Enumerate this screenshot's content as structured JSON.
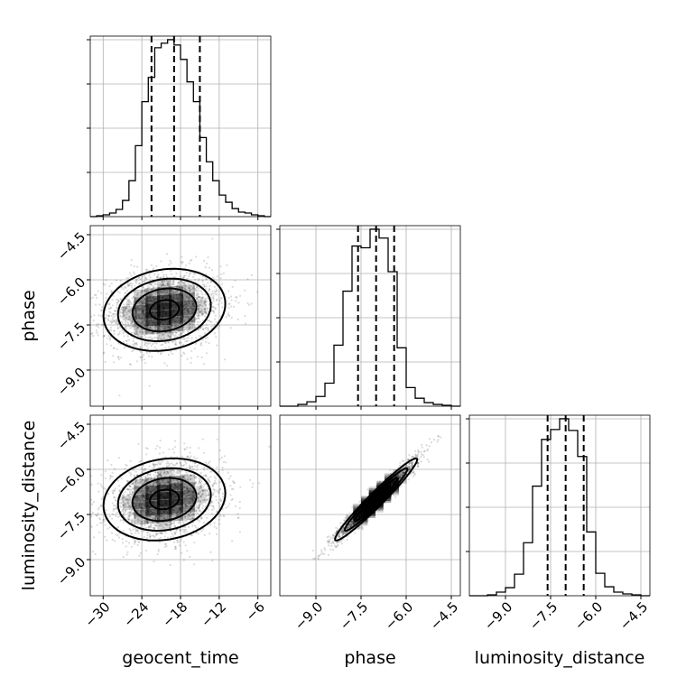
{
  "chart_data": {
    "type": "corner",
    "parameters": [
      {
        "name": "geocent_time",
        "range": [
          -32,
          -4
        ],
        "ticks": [
          -30,
          -24,
          -18,
          -12,
          -6
        ],
        "tick_labels": [
          "−30",
          "−24",
          "−18",
          "−12",
          "−6"
        ],
        "quantiles": [
          -22.5,
          -19,
          -15
        ]
      },
      {
        "name": "phase",
        "range": [
          -10.2,
          -4.2
        ],
        "ticks": [
          -9.0,
          -7.5,
          -6.0,
          -4.5
        ],
        "tick_labels": [
          "−9.0",
          "−7.5",
          "−6.0",
          "−4.5"
        ],
        "quantiles": [
          -7.6,
          -7.0,
          -6.4
        ]
      },
      {
        "name": "luminosity_distance",
        "range": [
          -10.2,
          -4.2
        ],
        "ticks": [
          -9.0,
          -7.5,
          -6.0,
          -4.5
        ],
        "tick_labels": [
          "−9.0",
          "−7.5",
          "−6.0",
          "−4.5"
        ],
        "quantiles": [
          -7.6,
          -7.0,
          -6.4
        ]
      }
    ],
    "histograms": [
      {
        "param": "geocent_time",
        "bin_edges": [
          -32,
          -31,
          -30,
          -29,
          -28,
          -27,
          -26,
          -25,
          -24,
          -23,
          -22,
          -21,
          -20,
          -19,
          -18,
          -17,
          -16,
          -15,
          -14,
          -13,
          -12,
          -11,
          -10,
          -9,
          -8,
          -7,
          -6,
          -5,
          -4
        ],
        "counts": [
          0,
          1,
          2,
          4,
          8,
          18,
          40,
          79,
          128,
          155,
          188,
          193,
          197,
          191,
          175,
          150,
          128,
          88,
          61,
          40,
          24,
          16,
          9,
          5,
          4,
          2,
          1,
          0
        ]
      },
      {
        "param": "phase",
        "bin_edges": [
          -10.2,
          -9.9,
          -9.6,
          -9.3,
          -9.0,
          -8.7,
          -8.4,
          -8.1,
          -7.8,
          -7.5,
          -7.2,
          -6.9,
          -6.6,
          -6.3,
          -6.0,
          -5.7,
          -5.4,
          -5.1,
          -4.8,
          -4.5,
          -4.2
        ],
        "counts": [
          0,
          0,
          2,
          5,
          11,
          26,
          69,
          130,
          181,
          179,
          200,
          190,
          152,
          66,
          21,
          9,
          4,
          2,
          1,
          0
        ]
      },
      {
        "param": "luminosity_distance",
        "bin_edges": [
          -10.2,
          -9.9,
          -9.6,
          -9.3,
          -9.0,
          -8.7,
          -8.4,
          -8.1,
          -7.8,
          -7.5,
          -7.2,
          -6.9,
          -6.6,
          -6.3,
          -6.0,
          -5.7,
          -5.4,
          -5.1,
          -4.8,
          -4.5,
          -4.2
        ],
        "counts": [
          0,
          0,
          1,
          4,
          9,
          24,
          59,
          122,
          174,
          185,
          197,
          184,
          155,
          71,
          25,
          10,
          4,
          2,
          1,
          0
        ]
      }
    ],
    "pairs": [
      {
        "x": "geocent_time",
        "y": "phase",
        "center": [
          -20.5,
          -7.0
        ],
        "sigma": [
          4.5,
          0.65
        ],
        "correlation": 0.15
      },
      {
        "x": "geocent_time",
        "y": "luminosity_distance",
        "center": [
          -20.5,
          -7.0
        ],
        "sigma": [
          4.5,
          0.65
        ],
        "correlation": 0.15
      },
      {
        "x": "phase",
        "y": "luminosity_distance",
        "center": [
          -7.0,
          -7.0
        ],
        "sigma": [
          0.65,
          0.65
        ],
        "correlation": 0.97
      }
    ],
    "grid": true
  }
}
